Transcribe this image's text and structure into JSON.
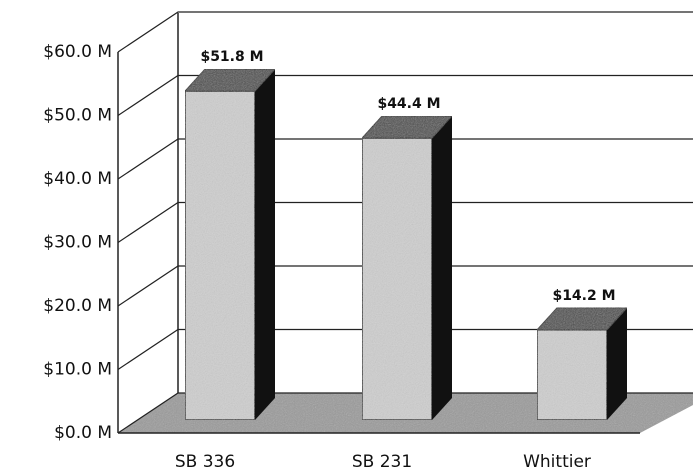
{
  "chart_data": {
    "type": "bar",
    "categories": [
      "SB 336",
      "SB 231",
      "Whittier"
    ],
    "values": [
      51.8,
      44.4,
      14.2
    ],
    "value_labels": [
      "$51.8 M",
      "$44.4 M",
      "$14.2 M"
    ],
    "color": "#cfcfcf",
    "ylim": [
      0,
      60
    ],
    "yticks": [
      {
        "value": 0,
        "label": "$0.0 M"
      },
      {
        "value": 10,
        "label": "$10.0 M"
      },
      {
        "value": 20,
        "label": "$20.0 M"
      },
      {
        "value": 30,
        "label": "$30.0 M"
      },
      {
        "value": 40,
        "label": "$40.0 M"
      },
      {
        "value": 50,
        "label": "$50.0 M"
      },
      {
        "value": 60,
        "label": "$60.0 M"
      }
    ],
    "grid": true
  }
}
